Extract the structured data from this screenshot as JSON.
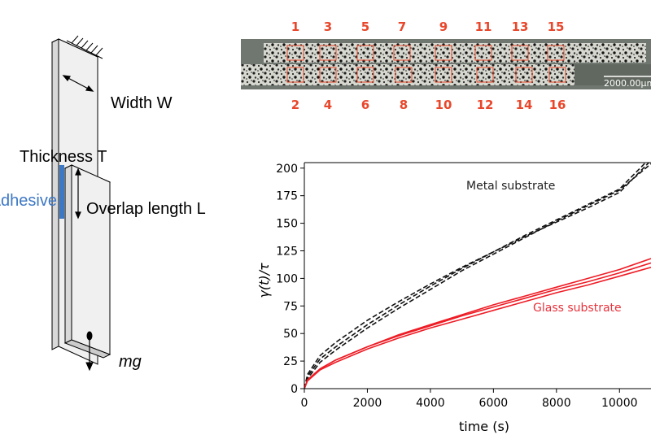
{
  "diagram": {
    "width_label": "Width W",
    "thickness_label": "Thickness T",
    "adhesive_label": "Adhesive",
    "overlap_label": "Overlap length L",
    "mass_label": "mg"
  },
  "specimen": {
    "top_labels": [
      "1",
      "3",
      "5",
      "7",
      "9",
      "11",
      "13",
      "15"
    ],
    "bottom_labels": [
      "2",
      "4",
      "6",
      "8",
      "10",
      "12",
      "14",
      "16"
    ],
    "scale_bar_label": "2000.00µm"
  },
  "chart_data": {
    "type": "line",
    "xlabel": "time (s)",
    "ylabel": "γ(t)/τ",
    "xlim": [
      0,
      11000
    ],
    "ylim": [
      0,
      205
    ],
    "xticks": [
      0,
      2000,
      4000,
      6000,
      8000,
      10000
    ],
    "yticks": [
      0,
      25,
      50,
      75,
      100,
      125,
      150,
      175,
      200
    ],
    "annotations": [
      {
        "text": "Metal substrate",
        "color": "#222222"
      },
      {
        "text": "Glass substrate",
        "color": "#e8323c"
      }
    ],
    "series": [
      {
        "group": "metal",
        "style": "dashed",
        "color": "#111111",
        "x": [
          0,
          100,
          500,
          1000,
          2000,
          3000,
          4000,
          5000,
          6000,
          7000,
          8000,
          9000,
          10000,
          11000
        ],
        "y": [
          0,
          13,
          30,
          42,
          62,
          79,
          95,
          110,
          124,
          138,
          151,
          164,
          178,
          207
        ]
      },
      {
        "group": "metal",
        "style": "dashed",
        "color": "#111111",
        "x": [
          0,
          100,
          500,
          1000,
          2000,
          3000,
          4000,
          5000,
          6000,
          7000,
          8000,
          9000,
          10000,
          11000
        ],
        "y": [
          0,
          11,
          27,
          38,
          58,
          76,
          93,
          109,
          124,
          139,
          153,
          167,
          181,
          210
        ]
      },
      {
        "group": "metal",
        "style": "dashed",
        "color": "#111111",
        "x": [
          0,
          100,
          500,
          1000,
          2000,
          3000,
          4000,
          5000,
          6000,
          7000,
          8000,
          9000,
          10000,
          11000
        ],
        "y": [
          0,
          9,
          24,
          35,
          55,
          73,
          90,
          107,
          122,
          137,
          152,
          166,
          180,
          204
        ]
      },
      {
        "group": "glass",
        "style": "solid",
        "color": "#ee1c25",
        "x": [
          0,
          100,
          500,
          1000,
          2000,
          3000,
          4000,
          5000,
          6000,
          7000,
          8000,
          9000,
          10000,
          11000
        ],
        "y": [
          0,
          8,
          18,
          26,
          38,
          49,
          58,
          67,
          76,
          84,
          92,
          100,
          108,
          118
        ]
      },
      {
        "group": "glass",
        "style": "solid",
        "color": "#ee1c25",
        "x": [
          0,
          100,
          500,
          1000,
          2000,
          3000,
          4000,
          5000,
          6000,
          7000,
          8000,
          9000,
          10000,
          11000
        ],
        "y": [
          0,
          8,
          18,
          26,
          38,
          48,
          57,
          66,
          74,
          82,
          90,
          97,
          105,
          114
        ]
      },
      {
        "group": "glass",
        "style": "solid",
        "color": "#ee1c25",
        "x": [
          0,
          100,
          500,
          1000,
          2000,
          3000,
          4000,
          5000,
          6000,
          7000,
          8000,
          9000,
          10000,
          11000
        ],
        "y": [
          0,
          7,
          17,
          24,
          36,
          46,
          55,
          63,
          71,
          79,
          87,
          94,
          102,
          110
        ]
      }
    ]
  }
}
